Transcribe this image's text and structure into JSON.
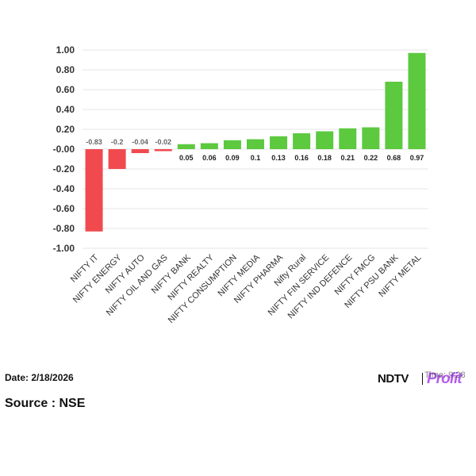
{
  "chart_data": {
    "type": "bar",
    "categories": [
      "NIFTY IT",
      "NIFTY ENERGY",
      "NIFTY AUTO",
      "NIFTY OIL AND GAS",
      "NIFTY BANK",
      "NIFTY REALTY",
      "NIFTY CONSUMPTION",
      "NIFTY MEDIA",
      "NIFTY PHARMA",
      "Nifty Rural",
      "NIFTY FIN SERVICE",
      "NIFTY IND DEFENCE",
      "NIFTY FMCG",
      "NIFTY PSU BANK",
      "NIFTY METAL"
    ],
    "values": [
      -0.83,
      -0.2,
      -0.04,
      -0.02,
      0.05,
      0.06,
      0.09,
      0.1,
      0.13,
      0.16,
      0.18,
      0.21,
      0.22,
      0.68,
      0.97
    ],
    "value_labels": [
      "-0.83",
      "-0.2",
      "-0.04",
      "-0.02",
      "0.05",
      "0.06",
      "0.09",
      "0.1",
      "0.13",
      "0.16",
      "0.18",
      "0.21",
      "0.22",
      "0.68",
      "0.97"
    ],
    "yticks": [
      "1.00",
      "0.80",
      "0.60",
      "0.40",
      "0.20",
      "-0.00",
      "-0.20",
      "-0.40",
      "-0.60",
      "-0.80",
      "-1.00"
    ],
    "ylim": [
      -1.0,
      1.0
    ],
    "title": "",
    "xlabel": "",
    "ylabel": "",
    "grid": true,
    "colors": {
      "positive": "#5cc93f",
      "negative": "#f04a4f",
      "grid": "#e6e6e6",
      "tick_text": "#333333",
      "positive_label": "#222222",
      "negative_label": "#666666"
    }
  },
  "footer": {
    "date": "Date: 2/18/2026",
    "source": "Source : NSE",
    "time": "Time: 9:28"
  },
  "brand": {
    "ndtv": "NDTV",
    "profit": "Profit",
    "profit_color": "#b45cf0"
  }
}
